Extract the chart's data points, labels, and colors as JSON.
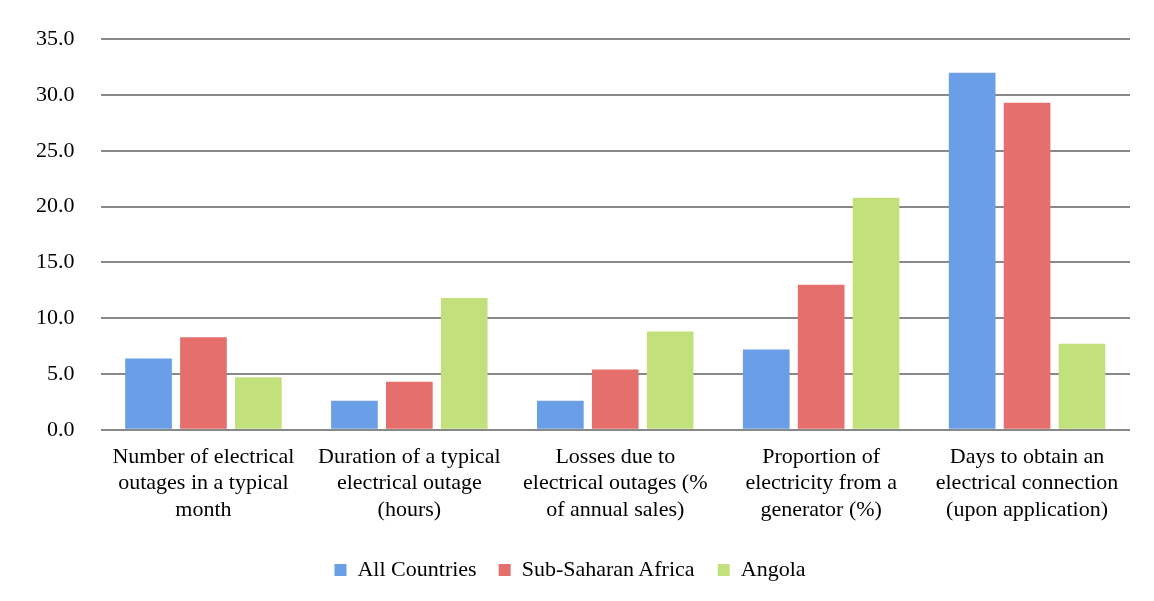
{
  "chart_data": {
    "type": "bar",
    "categories": [
      "Number of electrical outages in a typical month",
      "Duration of a typical electrical outage (hours)",
      "Losses due to electrical outages (% of annual sales)",
      "Proportion of electricity from a generator (%)",
      "Days to obtain an electrical connection (upon application)"
    ],
    "series": [
      {
        "name": "All Countries",
        "color": "#6a9ee6",
        "values": [
          6.4,
          2.6,
          2.6,
          7.2,
          32.0
        ]
      },
      {
        "name": "Sub-Saharan Africa",
        "color": "#e56f6c",
        "values": [
          8.3,
          4.3,
          5.4,
          13.0,
          29.3
        ]
      },
      {
        "name": "Angola",
        "color": "#c2e07c",
        "values": [
          4.7,
          11.8,
          8.8,
          20.8,
          7.7
        ]
      }
    ],
    "ylim": [
      0,
      35
    ],
    "yticks": [
      {
        "value": 0,
        "label": "0.0"
      },
      {
        "value": 5,
        "label": "5.0"
      },
      {
        "value": 10,
        "label": "10.0"
      },
      {
        "value": 15,
        "label": "15.0"
      },
      {
        "value": 20,
        "label": "20.0"
      },
      {
        "value": 25,
        "label": "25.0"
      },
      {
        "value": 30,
        "label": "30.0"
      },
      {
        "value": 35,
        "label": "35.0"
      }
    ],
    "grid": "y",
    "legend": "bottom"
  }
}
